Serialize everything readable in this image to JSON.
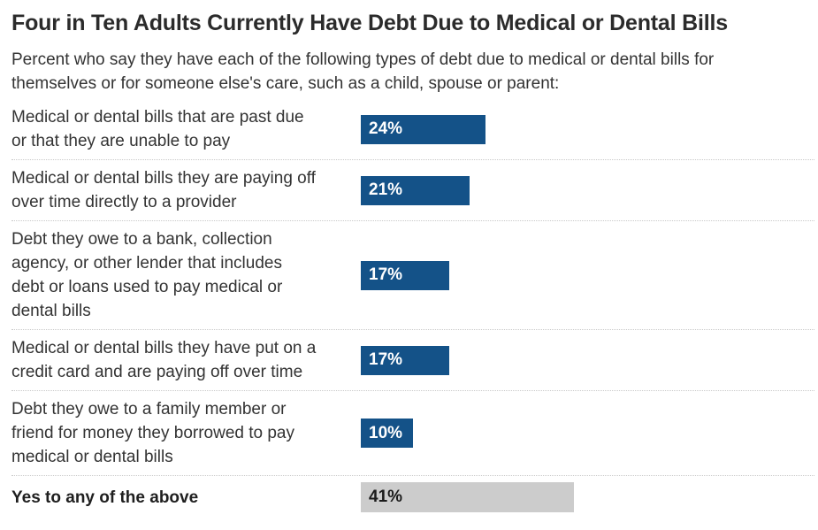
{
  "chart": {
    "title": "Four in Ten Adults Currently Have Debt Due to Medical or Dental Bills",
    "subtitle": "Percent who say they have each of the following types of debt due to medical or dental bills for\nthemselves or for someone else's care, such as a child, spouse or parent:"
  },
  "chart_data": {
    "type": "bar",
    "orientation": "horizontal",
    "title": "Four in Ten Adults Currently Have Debt Due to Medical or Dental Bills",
    "subtitle": "Percent who say they have each of the following types of debt due to medical or dental bills for themselves or for someone else's care, such as a child, spouse or parent:",
    "categories": [
      "Medical or dental bills that are past due or that they are unable to pay",
      "Medical or dental bills they are paying off over time directly to a provider",
      "Debt they owe to a bank, collection agency, or other lender that includes debt or loans used to pay medical or dental bills",
      "Medical or dental bills they have put on a credit card and are paying off over time",
      "Debt they owe to a family member or friend for money they borrowed to pay medical or dental bills",
      "Yes to any of the above"
    ],
    "values": [
      24,
      21,
      17,
      17,
      10,
      41
    ],
    "value_labels": [
      "24%",
      "21%",
      "17%",
      "17%",
      "10%",
      "41%"
    ],
    "bar_color": "#145288",
    "total_bar_color": "#cccccc",
    "value_label_color_on_bar": "#ffffff",
    "value_label_color_on_total_bar": "#1a1a1a",
    "value_label_position": "inside-left",
    "grid": false,
    "legend": false,
    "axis_ticks_visible": false,
    "xlim": [
      0,
      100
    ]
  },
  "rows": [
    {
      "label": "Medical or dental bills that are past due\nor that they are unable to pay",
      "value": 24,
      "display": "24%",
      "highlight": false
    },
    {
      "label": "Medical or dental bills they are paying off\nover time directly to a provider",
      "value": 21,
      "display": "21%",
      "highlight": false
    },
    {
      "label": "Debt they owe to a bank, collection\nagency, or other lender that includes\ndebt or loans used to pay medical or\ndental bills",
      "value": 17,
      "display": "17%",
      "highlight": false
    },
    {
      "label": "Medical or dental bills they have put on a\ncredit card and are paying off over time",
      "value": 17,
      "display": "17%",
      "highlight": false
    },
    {
      "label": "Debt they owe to a family member or\nfriend for money they borrowed to pay\nmedical or dental bills",
      "value": 10,
      "display": "10%",
      "highlight": false
    },
    {
      "label": "Yes to any of the above",
      "value": 41,
      "display": "41%",
      "highlight": true
    }
  ]
}
